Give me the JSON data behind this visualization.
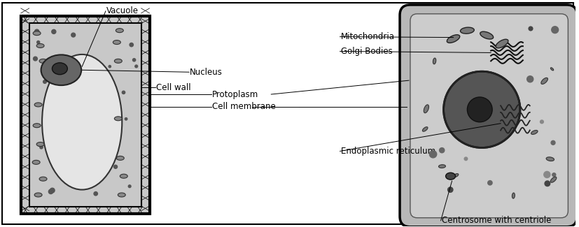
{
  "background_color": "#ffffff",
  "border_color": "#000000",
  "fig_width": 8.28,
  "fig_height": 3.25,
  "dpi": 100,
  "labels": {
    "vacuole": "Vacuole",
    "cell_wall": "Cell wall",
    "cell_membrane": "Cell membrane",
    "protoplasm": "Protoplasm",
    "nucleus": "Nucleus",
    "endoplasmic_reticulum": "Endoplasmic reticulum",
    "golgi_bodies": "Golgi Bodies",
    "mitochondria": "Mitochondria",
    "centrosome": "Centrosome with centriole"
  },
  "font_size": 8.5
}
